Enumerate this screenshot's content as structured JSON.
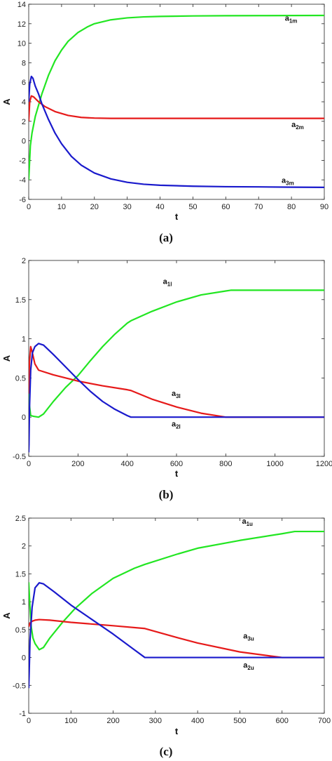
{
  "chart_data": [
    {
      "type": "line",
      "panel": "(a)",
      "xlabel": "t",
      "ylabel": "A",
      "xlim": [
        0,
        90
      ],
      "ylim": [
        -6,
        14
      ],
      "xticks": [
        0,
        10,
        20,
        30,
        40,
        50,
        60,
        70,
        80,
        90
      ],
      "yticks": [
        -6,
        -4,
        -2,
        0,
        2,
        4,
        6,
        8,
        10,
        12,
        14
      ],
      "caption": "(a)",
      "series": [
        {
          "label": "a",
          "sub": "1m",
          "color": "#22e622",
          "label_at": [
            78,
            12.3
          ],
          "points": [
            [
              0,
              -4
            ],
            [
              0.5,
              -0.5
            ],
            [
              1,
              0.8
            ],
            [
              2,
              2.5
            ],
            [
              4,
              4.8
            ],
            [
              6,
              6.7
            ],
            [
              8,
              8.2
            ],
            [
              10,
              9.3
            ],
            [
              12,
              10.2
            ],
            [
              15,
              11.1
            ],
            [
              18,
              11.7
            ],
            [
              20,
              12.0
            ],
            [
              25,
              12.4
            ],
            [
              30,
              12.6
            ],
            [
              35,
              12.7
            ],
            [
              40,
              12.75
            ],
            [
              50,
              12.8
            ],
            [
              60,
              12.82
            ],
            [
              70,
              12.83
            ],
            [
              80,
              12.84
            ],
            [
              90,
              12.85
            ]
          ]
        },
        {
          "label": "a",
          "sub": "2m",
          "color": "#e61a1a",
          "label_at": [
            80,
            1.4
          ],
          "points": [
            [
              0,
              2.0
            ],
            [
              0.3,
              4.0
            ],
            [
              0.8,
              4.6
            ],
            [
              1.5,
              4.5
            ],
            [
              3,
              4.0
            ],
            [
              5,
              3.5
            ],
            [
              8,
              3.0
            ],
            [
              12,
              2.6
            ],
            [
              16,
              2.4
            ],
            [
              20,
              2.33
            ],
            [
              25,
              2.3
            ],
            [
              30,
              2.3
            ],
            [
              40,
              2.3
            ],
            [
              50,
              2.3
            ],
            [
              60,
              2.3
            ],
            [
              70,
              2.3
            ],
            [
              80,
              2.3
            ],
            [
              90,
              2.3
            ]
          ]
        },
        {
          "label": "a",
          "sub": "3m",
          "color": "#1a1acc",
          "label_at": [
            77,
            -4.3
          ],
          "points": [
            [
              0,
              4.0
            ],
            [
              0.3,
              5.8
            ],
            [
              0.8,
              6.6
            ],
            [
              1.3,
              6.4
            ],
            [
              2,
              5.6
            ],
            [
              3,
              4.8
            ],
            [
              4,
              3.8
            ],
            [
              6,
              2.2
            ],
            [
              8,
              0.8
            ],
            [
              10,
              -0.3
            ],
            [
              13,
              -1.6
            ],
            [
              16,
              -2.5
            ],
            [
              20,
              -3.3
            ],
            [
              25,
              -3.9
            ],
            [
              30,
              -4.25
            ],
            [
              35,
              -4.45
            ],
            [
              40,
              -4.55
            ],
            [
              50,
              -4.65
            ],
            [
              60,
              -4.7
            ],
            [
              70,
              -4.72
            ],
            [
              80,
              -4.75
            ],
            [
              90,
              -4.77
            ]
          ]
        }
      ]
    },
    {
      "type": "line",
      "panel": "(b)",
      "xlabel": "t",
      "ylabel": "A",
      "xlim": [
        0,
        1200
      ],
      "ylim": [
        -0.5,
        2
      ],
      "xticks": [
        0,
        200,
        400,
        600,
        800,
        1000,
        1200
      ],
      "yticks": [
        -0.5,
        0,
        0.5,
        1,
        1.5,
        2
      ],
      "caption": "(b)",
      "series": [
        {
          "label": "a",
          "sub": "1l",
          "color": "#22e622",
          "label_at": [
            545,
            1.7
          ],
          "points": [
            [
              0,
              0.4
            ],
            [
              3,
              0.15
            ],
            [
              8,
              0.02
            ],
            [
              20,
              0.01
            ],
            [
              40,
              0.0
            ],
            [
              60,
              0.04
            ],
            [
              100,
              0.2
            ],
            [
              150,
              0.38
            ],
            [
              200,
              0.53
            ],
            [
              250,
              0.72
            ],
            [
              300,
              0.9
            ],
            [
              350,
              1.06
            ],
            [
              400,
              1.2
            ],
            [
              415,
              1.23
            ],
            [
              500,
              1.35
            ],
            [
              600,
              1.47
            ],
            [
              700,
              1.56
            ],
            [
              800,
              1.61
            ],
            [
              820,
              1.62
            ],
            [
              1000,
              1.62
            ],
            [
              1200,
              1.62
            ]
          ]
        },
        {
          "label": "a",
          "sub": "3l",
          "color": "#e61a1a",
          "label_at": [
            580,
            0.27
          ],
          "points": [
            [
              0,
              0.3
            ],
            [
              3,
              0.7
            ],
            [
              8,
              0.9
            ],
            [
              15,
              0.82
            ],
            [
              25,
              0.68
            ],
            [
              40,
              0.6
            ],
            [
              100,
              0.54
            ],
            [
              200,
              0.46
            ],
            [
              300,
              0.4
            ],
            [
              400,
              0.35
            ],
            [
              415,
              0.34
            ],
            [
              500,
              0.23
            ],
            [
              600,
              0.13
            ],
            [
              700,
              0.05
            ],
            [
              800,
              0.0
            ],
            [
              820,
              0.0
            ],
            [
              1000,
              0.0
            ],
            [
              1200,
              0.0
            ]
          ]
        },
        {
          "label": "a",
          "sub": "2l",
          "color": "#1a1acc",
          "label_at": [
            580,
            -0.12
          ],
          "points": [
            [
              0,
              -0.45
            ],
            [
              1,
              -0.35
            ],
            [
              3,
              0.1
            ],
            [
              8,
              0.6
            ],
            [
              15,
              0.82
            ],
            [
              25,
              0.9
            ],
            [
              40,
              0.94
            ],
            [
              60,
              0.92
            ],
            [
              100,
              0.8
            ],
            [
              150,
              0.64
            ],
            [
              200,
              0.48
            ],
            [
              250,
              0.33
            ],
            [
              300,
              0.2
            ],
            [
              350,
              0.1
            ],
            [
              400,
              0.02
            ],
            [
              415,
              0.0
            ],
            [
              600,
              0.0
            ],
            [
              800,
              0.0
            ],
            [
              1000,
              0.0
            ],
            [
              1200,
              0.0
            ]
          ]
        }
      ]
    },
    {
      "type": "line",
      "panel": "(c)",
      "xlabel": "t",
      "ylabel": "A",
      "xlim": [
        0,
        700
      ],
      "ylim": [
        -1,
        2.5
      ],
      "xticks": [
        0,
        100,
        200,
        300,
        400,
        500,
        600,
        700
      ],
      "yticks": [
        -1,
        -0.5,
        0,
        0.5,
        1,
        1.5,
        2,
        2.5
      ],
      "caption": "(c)",
      "series": [
        {
          "label": "a",
          "sub": "1u",
          "color": "#22e622",
          "label_at": [
            505,
            2.4
          ],
          "points": [
            [
              0,
              1.35
            ],
            [
              3,
              0.9
            ],
            [
              6,
              0.55
            ],
            [
              10,
              0.35
            ],
            [
              15,
              0.25
            ],
            [
              25,
              0.14
            ],
            [
              35,
              0.18
            ],
            [
              50,
              0.35
            ],
            [
              80,
              0.63
            ],
            [
              110,
              0.88
            ],
            [
              150,
              1.15
            ],
            [
              200,
              1.42
            ],
            [
              250,
              1.6
            ],
            [
              275,
              1.67
            ],
            [
              350,
              1.85
            ],
            [
              400,
              1.96
            ],
            [
              500,
              2.1
            ],
            [
              600,
              2.22
            ],
            [
              630,
              2.26
            ],
            [
              700,
              2.26
            ]
          ]
        },
        {
          "label": "a",
          "sub": "3u",
          "color": "#e61a1a",
          "label_at": [
            508,
            0.34
          ],
          "points": [
            [
              0,
              0.55
            ],
            [
              3,
              0.62
            ],
            [
              8,
              0.65
            ],
            [
              15,
              0.67
            ],
            [
              25,
              0.68
            ],
            [
              50,
              0.67
            ],
            [
              100,
              0.63
            ],
            [
              150,
              0.6
            ],
            [
              200,
              0.57
            ],
            [
              275,
              0.52
            ],
            [
              350,
              0.36
            ],
            [
              400,
              0.26
            ],
            [
              500,
              0.1
            ],
            [
              600,
              0.0
            ],
            [
              630,
              0.0
            ],
            [
              700,
              0.0
            ]
          ]
        },
        {
          "label": "a",
          "sub": "2u",
          "color": "#1a1acc",
          "label_at": [
            508,
            -0.18
          ],
          "points": [
            [
              0,
              -0.55
            ],
            [
              1,
              -0.3
            ],
            [
              3,
              0.3
            ],
            [
              8,
              0.9
            ],
            [
              15,
              1.25
            ],
            [
              25,
              1.34
            ],
            [
              35,
              1.32
            ],
            [
              60,
              1.18
            ],
            [
              100,
              0.94
            ],
            [
              150,
              0.68
            ],
            [
              200,
              0.42
            ],
            [
              250,
              0.14
            ],
            [
              275,
              0.0
            ],
            [
              350,
              0.0
            ],
            [
              500,
              0.0
            ],
            [
              700,
              0.0
            ]
          ]
        }
      ]
    }
  ]
}
